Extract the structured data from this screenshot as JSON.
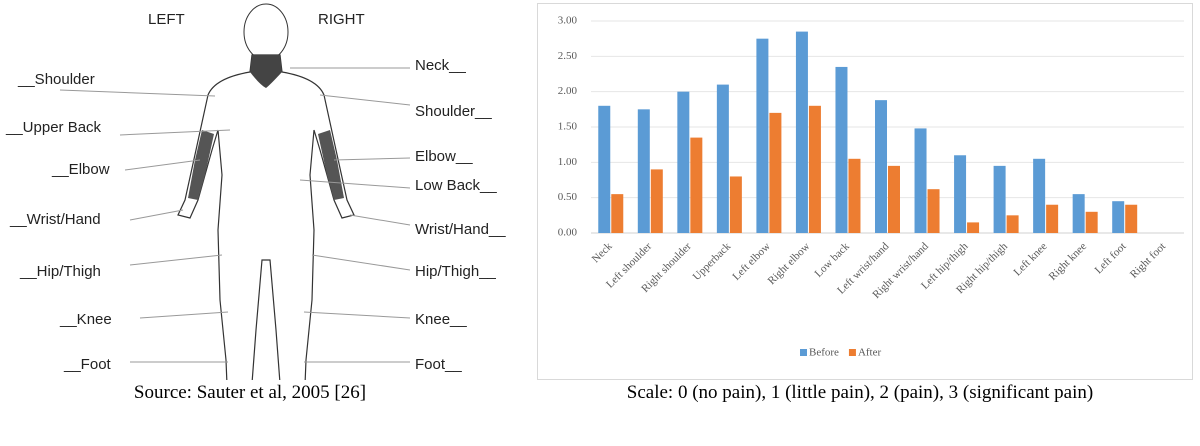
{
  "diagram": {
    "side_labels": [
      "LEFT",
      "RIGHT"
    ],
    "left_labels": [
      "__Shoulder",
      "__Upper Back",
      "__Elbow",
      "__Wrist/Hand",
      "__Hip/Thigh",
      "__Knee",
      "__Foot"
    ],
    "right_labels": [
      "Neck__",
      "Shoulder__",
      "Elbow__",
      "Low Back__",
      "Wrist/Hand__",
      "Hip/Thigh__",
      "Knee__",
      "Foot__"
    ],
    "caption": "Source: Sauter et al, 2005 [26]"
  },
  "chart_data": {
    "type": "bar",
    "caption": "Scale: 0 (no pain), 1 (little pain), 2 (pain), 3 (significant pain)",
    "categories": [
      "Neck",
      "Left shoulder",
      "Right shoulder",
      "Upperback",
      "Left elbow",
      "Right elbow",
      "Low back",
      "Left wrist/hand",
      "Right wrist/hand",
      "Left hip/thigh",
      "Right hip/thigh",
      "Left knee",
      "Right knee",
      "Left foot",
      "Right foot"
    ],
    "series": [
      {
        "name": "Before",
        "color": "#5b9bd5",
        "values": [
          1.8,
          1.75,
          2.0,
          2.1,
          2.75,
          2.85,
          2.35,
          1.88,
          1.48,
          1.1,
          0.95,
          1.05,
          0.55,
          0.45,
          0
        ]
      },
      {
        "name": "After",
        "color": "#ed7d31",
        "values": [
          0.55,
          0.9,
          1.35,
          0.8,
          1.7,
          1.8,
          1.05,
          0.95,
          0.62,
          0.15,
          0.25,
          0.4,
          0.3,
          0.4,
          0
        ]
      }
    ],
    "ylim": [
      0,
      3
    ],
    "yticks": [
      {
        "value": 0,
        "label": "0.00"
      },
      {
        "value": 0.5,
        "label": "0.50"
      },
      {
        "value": 1,
        "label": "1.00"
      },
      {
        "value": 1.5,
        "label": "1.50"
      },
      {
        "value": 2,
        "label": "2.00"
      },
      {
        "value": 2.5,
        "label": "2.50"
      },
      {
        "value": 3,
        "label": "3.00"
      }
    ],
    "grid": true,
    "legend": "bottom"
  }
}
